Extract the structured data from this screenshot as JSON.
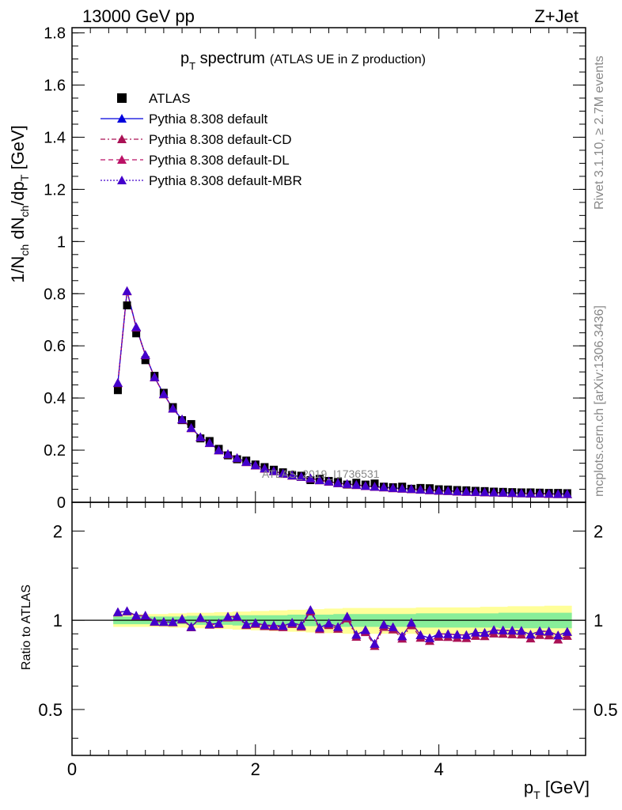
{
  "header": {
    "left": "13000 GeV pp",
    "right": "Z+Jet"
  },
  "side_labels": {
    "rivet": "Rivet 3.1.10, ≥ 2.7M events",
    "mcplots": "mcplots.cern.ch [arXiv:1306.3436]"
  },
  "watermark": "ATLAS_2019_I1736531",
  "title": {
    "main_pre": "p",
    "main_sub": "T",
    "main_post": " spectrum",
    "small": "(ATLAS UE in Z production)"
  },
  "legend": [
    {
      "label": "ATLAS",
      "style": "data"
    },
    {
      "label": "Pythia 8.308 default",
      "style": "solid",
      "color": "#0000dd"
    },
    {
      "label": "Pythia 8.308 default-CD",
      "style": "dashdot",
      "color": "#aa1155"
    },
    {
      "label": "Pythia 8.308 default-DL",
      "style": "dashed",
      "color": "#bb1166"
    },
    {
      "label": "Pythia 8.308 default-MBR",
      "style": "dotted",
      "color": "#4400cc"
    }
  ],
  "colors": {
    "data": "#000000",
    "default": "#0000dd",
    "cd": "#aa1155",
    "dl": "#bb1166",
    "mbr": "#4400cc",
    "band_inner": "#88ee99",
    "band_outer": "#ffff99"
  },
  "chart_data": [
    {
      "type": "scatter",
      "panel": "main",
      "xlabel": "p_T [GeV]",
      "ylabel": "1/N_ch dN_ch/dp_T [GeV]",
      "xlim": [
        0,
        5.6
      ],
      "ylim": [
        0,
        1.82
      ],
      "yticks": [
        0,
        0.2,
        0.4,
        0.6,
        0.8,
        1,
        1.2,
        1.4,
        1.6,
        1.8
      ],
      "ytick_labels": [
        "0",
        "0.2",
        "0.4",
        "0.6",
        "0.8",
        "1",
        "1.2",
        "1.4",
        "1.6",
        "1.8"
      ],
      "x": [
        0.5,
        0.6,
        0.7,
        0.8,
        0.9,
        1.0,
        1.1,
        1.2,
        1.3,
        1.4,
        1.5,
        1.6,
        1.7,
        1.8,
        1.9,
        2.0,
        2.1,
        2.2,
        2.3,
        2.4,
        2.5,
        2.6,
        2.7,
        2.8,
        2.9,
        3.0,
        3.1,
        3.2,
        3.3,
        3.4,
        3.5,
        3.6,
        3.7,
        3.8,
        3.9,
        4.0,
        4.1,
        4.2,
        4.3,
        4.4,
        4.5,
        4.6,
        4.7,
        4.8,
        4.9,
        5.0,
        5.1,
        5.2,
        5.3,
        5.4
      ],
      "series": [
        {
          "name": "ATLAS",
          "values": [
            0.43,
            0.755,
            0.648,
            0.545,
            0.485,
            0.42,
            0.365,
            0.315,
            0.3,
            0.245,
            0.235,
            0.205,
            0.18,
            0.165,
            0.16,
            0.145,
            0.135,
            0.125,
            0.115,
            0.105,
            0.102,
            0.085,
            0.09,
            0.082,
            0.078,
            0.068,
            0.075,
            0.068,
            0.072,
            0.06,
            0.058,
            0.06,
            0.052,
            0.055,
            0.054,
            0.05,
            0.049,
            0.047,
            0.046,
            0.044,
            0.043,
            0.041,
            0.04,
            0.039,
            0.038,
            0.038,
            0.037,
            0.036,
            0.036,
            0.035
          ]
        },
        {
          "name": "Pythia 8.308 default",
          "values": [
            0.458,
            0.81,
            0.672,
            0.565,
            0.48,
            0.415,
            0.36,
            0.318,
            0.285,
            0.25,
            0.228,
            0.2,
            0.185,
            0.17,
            0.155,
            0.142,
            0.13,
            0.12,
            0.11,
            0.103,
            0.098,
            0.092,
            0.085,
            0.08,
            0.074,
            0.07,
            0.067,
            0.063,
            0.06,
            0.058,
            0.055,
            0.053,
            0.051,
            0.049,
            0.047,
            0.045,
            0.044,
            0.042,
            0.041,
            0.04,
            0.039,
            0.038,
            0.037,
            0.036,
            0.035,
            0.034,
            0.034,
            0.033,
            0.032,
            0.032
          ]
        },
        {
          "name": "Pythia 8.308 default-CD",
          "values": [
            0.457,
            0.809,
            0.67,
            0.564,
            0.479,
            0.414,
            0.359,
            0.317,
            0.284,
            0.249,
            0.227,
            0.199,
            0.184,
            0.169,
            0.154,
            0.141,
            0.129,
            0.119,
            0.109,
            0.102,
            0.097,
            0.091,
            0.084,
            0.079,
            0.073,
            0.069,
            0.066,
            0.062,
            0.059,
            0.057,
            0.054,
            0.052,
            0.05,
            0.048,
            0.046,
            0.044,
            0.043,
            0.041,
            0.04,
            0.039,
            0.038,
            0.037,
            0.036,
            0.035,
            0.034,
            0.033,
            0.033,
            0.032,
            0.031,
            0.031
          ]
        },
        {
          "name": "Pythia 8.308 default-DL",
          "values": [
            0.458,
            0.81,
            0.671,
            0.565,
            0.48,
            0.415,
            0.36,
            0.318,
            0.285,
            0.25,
            0.228,
            0.2,
            0.185,
            0.17,
            0.155,
            0.142,
            0.13,
            0.12,
            0.11,
            0.103,
            0.098,
            0.092,
            0.085,
            0.08,
            0.074,
            0.07,
            0.067,
            0.063,
            0.06,
            0.058,
            0.055,
            0.053,
            0.051,
            0.049,
            0.047,
            0.045,
            0.044,
            0.042,
            0.041,
            0.04,
            0.039,
            0.038,
            0.037,
            0.036,
            0.035,
            0.034,
            0.034,
            0.033,
            0.032,
            0.032
          ]
        },
        {
          "name": "Pythia 8.308 default-MBR",
          "values": [
            0.458,
            0.81,
            0.672,
            0.565,
            0.48,
            0.415,
            0.36,
            0.318,
            0.285,
            0.25,
            0.228,
            0.2,
            0.185,
            0.17,
            0.155,
            0.142,
            0.13,
            0.12,
            0.11,
            0.103,
            0.098,
            0.092,
            0.085,
            0.08,
            0.074,
            0.07,
            0.067,
            0.063,
            0.06,
            0.058,
            0.055,
            0.053,
            0.051,
            0.049,
            0.047,
            0.045,
            0.044,
            0.042,
            0.041,
            0.04,
            0.039,
            0.038,
            0.037,
            0.036,
            0.035,
            0.034,
            0.034,
            0.033,
            0.032,
            0.032
          ]
        }
      ]
    },
    {
      "type": "line",
      "panel": "ratio",
      "xlabel": "p_T [GeV]",
      "ylabel": "Ratio to ATLAS",
      "xlim": [
        0,
        5.6
      ],
      "ylim": [
        0.35,
        2.5
      ],
      "yscale": "log",
      "yticks": [
        0.5,
        1,
        2
      ],
      "ytick_labels": [
        "0.5",
        "1",
        "2"
      ],
      "xticks": [
        0,
        2,
        4
      ],
      "xtick_labels": [
        "0",
        "2",
        "4"
      ],
      "x": [
        0.5,
        0.6,
        0.7,
        0.8,
        0.9,
        1.0,
        1.1,
        1.2,
        1.3,
        1.4,
        1.5,
        1.6,
        1.7,
        1.8,
        1.9,
        2.0,
        2.1,
        2.2,
        2.3,
        2.4,
        2.5,
        2.6,
        2.7,
        2.8,
        2.9,
        3.0,
        3.1,
        3.2,
        3.3,
        3.4,
        3.5,
        3.6,
        3.7,
        3.8,
        3.9,
        4.0,
        4.1,
        4.2,
        4.3,
        4.4,
        4.5,
        4.6,
        4.7,
        4.8,
        4.9,
        5.0,
        5.1,
        5.2,
        5.3,
        5.4
      ],
      "band_inner": [
        0.03,
        0.03,
        0.03,
        0.03,
        0.03,
        0.03,
        0.03,
        0.03,
        0.035,
        0.035,
        0.035,
        0.035,
        0.035,
        0.04,
        0.04,
        0.04,
        0.04,
        0.04,
        0.04,
        0.045,
        0.045,
        0.045,
        0.045,
        0.045,
        0.05,
        0.05,
        0.05,
        0.05,
        0.05,
        0.05,
        0.05,
        0.05,
        0.05,
        0.055,
        0.055,
        0.055,
        0.055,
        0.055,
        0.055,
        0.055,
        0.055,
        0.055,
        0.06,
        0.06,
        0.06,
        0.06,
        0.06,
        0.06,
        0.06,
        0.06
      ],
      "band_outer": [
        0.05,
        0.05,
        0.05,
        0.05,
        0.05,
        0.05,
        0.055,
        0.055,
        0.06,
        0.06,
        0.06,
        0.065,
        0.065,
        0.07,
        0.07,
        0.075,
        0.075,
        0.08,
        0.08,
        0.085,
        0.085,
        0.09,
        0.09,
        0.095,
        0.095,
        0.1,
        0.1,
        0.1,
        0.1,
        0.1,
        0.1,
        0.1,
        0.1,
        0.105,
        0.105,
        0.105,
        0.105,
        0.105,
        0.105,
        0.105,
        0.11,
        0.11,
        0.11,
        0.115,
        0.115,
        0.115,
        0.115,
        0.12,
        0.12,
        0.12
      ],
      "series": [
        {
          "name": "Pythia 8.308 default",
          "values": [
            1.065,
            1.073,
            1.037,
            1.037,
            0.99,
            0.988,
            0.986,
            1.01,
            0.95,
            1.02,
            0.97,
            0.976,
            1.028,
            1.03,
            0.969,
            0.979,
            0.963,
            0.96,
            0.957,
            0.981,
            0.961,
            1.082,
            0.944,
            0.976,
            0.949,
            1.029,
            0.893,
            0.926,
            0.833,
            0.967,
            0.948,
            0.883,
            0.981,
            0.891,
            0.87,
            0.9,
            0.898,
            0.894,
            0.891,
            0.909,
            0.907,
            0.927,
            0.925,
            0.923,
            0.921,
            0.895,
            0.919,
            0.917,
            0.889,
            0.914
          ]
        },
        {
          "name": "Pythia 8.308 default-CD",
          "values": [
            1.063,
            1.071,
            1.034,
            1.035,
            0.988,
            0.986,
            0.984,
            1.006,
            0.947,
            1.016,
            0.966,
            0.971,
            1.022,
            1.024,
            0.963,
            0.972,
            0.956,
            0.952,
            0.948,
            0.971,
            0.951,
            1.071,
            0.933,
            0.963,
            0.936,
            1.015,
            0.88,
            0.912,
            0.819,
            0.95,
            0.931,
            0.867,
            0.962,
            0.873,
            0.852,
            0.88,
            0.878,
            0.872,
            0.87,
            0.886,
            0.884,
            0.902,
            0.9,
            0.897,
            0.895,
            0.868,
            0.892,
            0.889,
            0.861,
            0.886
          ]
        },
        {
          "name": "Pythia 8.308 default-DL",
          "values": [
            1.065,
            1.073,
            1.035,
            1.037,
            0.99,
            0.988,
            0.986,
            1.01,
            0.95,
            1.02,
            0.97,
            0.976,
            1.028,
            1.03,
            0.969,
            0.979,
            0.963,
            0.96,
            0.957,
            0.981,
            0.961,
            1.082,
            0.944,
            0.976,
            0.949,
            1.029,
            0.893,
            0.926,
            0.833,
            0.967,
            0.948,
            0.883,
            0.981,
            0.891,
            0.87,
            0.9,
            0.898,
            0.894,
            0.891,
            0.909,
            0.907,
            0.927,
            0.925,
            0.923,
            0.921,
            0.895,
            0.919,
            0.917,
            0.889,
            0.914
          ]
        },
        {
          "name": "Pythia 8.308 default-MBR",
          "values": [
            1.065,
            1.073,
            1.037,
            1.037,
            0.99,
            0.988,
            0.986,
            1.01,
            0.95,
            1.02,
            0.97,
            0.976,
            1.028,
            1.03,
            0.969,
            0.979,
            0.963,
            0.96,
            0.957,
            0.981,
            0.961,
            1.082,
            0.944,
            0.976,
            0.949,
            1.029,
            0.893,
            0.926,
            0.833,
            0.967,
            0.948,
            0.883,
            0.981,
            0.891,
            0.87,
            0.9,
            0.898,
            0.894,
            0.891,
            0.909,
            0.907,
            0.927,
            0.925,
            0.923,
            0.921,
            0.895,
            0.919,
            0.917,
            0.889,
            0.914
          ]
        }
      ]
    }
  ]
}
